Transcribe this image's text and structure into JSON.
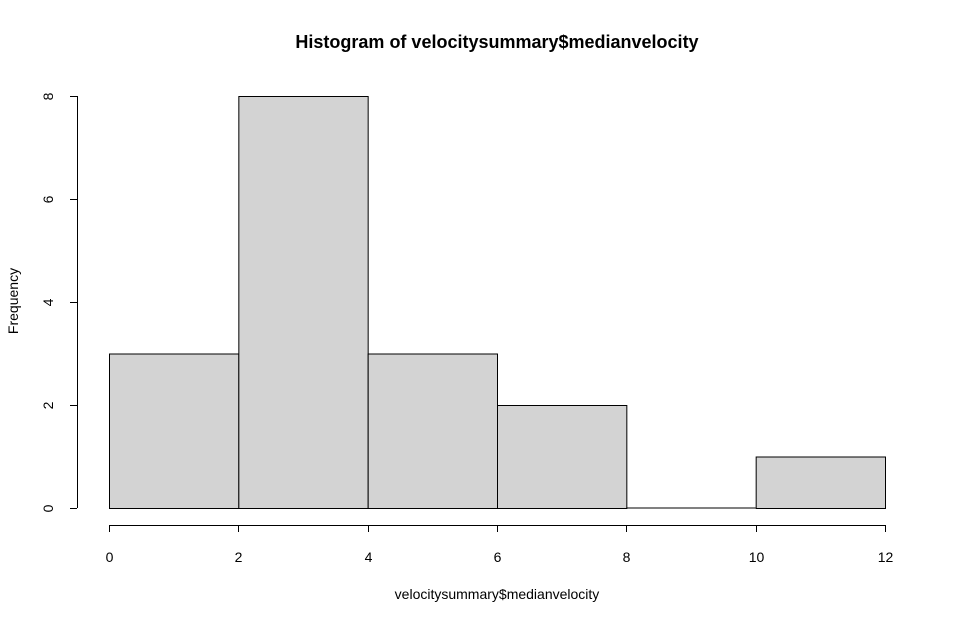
{
  "chart_data": {
    "type": "histogram",
    "title": "Histogram of velocitysummary$medianvelocity",
    "xlabel": "velocitysummary$medianvelocity",
    "ylabel": "Frequency",
    "bins": [
      {
        "start": 0,
        "end": 2,
        "count": 3
      },
      {
        "start": 2,
        "end": 4,
        "count": 8
      },
      {
        "start": 4,
        "end": 6,
        "count": 3
      },
      {
        "start": 6,
        "end": 8,
        "count": 2
      },
      {
        "start": 8,
        "end": 10,
        "count": 0
      },
      {
        "start": 10,
        "end": 12,
        "count": 1
      }
    ],
    "xlim": [
      0,
      12
    ],
    "ylim": [
      0,
      8
    ],
    "x_ticks": [
      0,
      2,
      4,
      6,
      8,
      10,
      12
    ],
    "y_ticks": [
      0,
      2,
      4,
      6,
      8
    ],
    "bar_fill": "#d3d3d3",
    "bar_stroke": "#000000",
    "grid": false
  }
}
